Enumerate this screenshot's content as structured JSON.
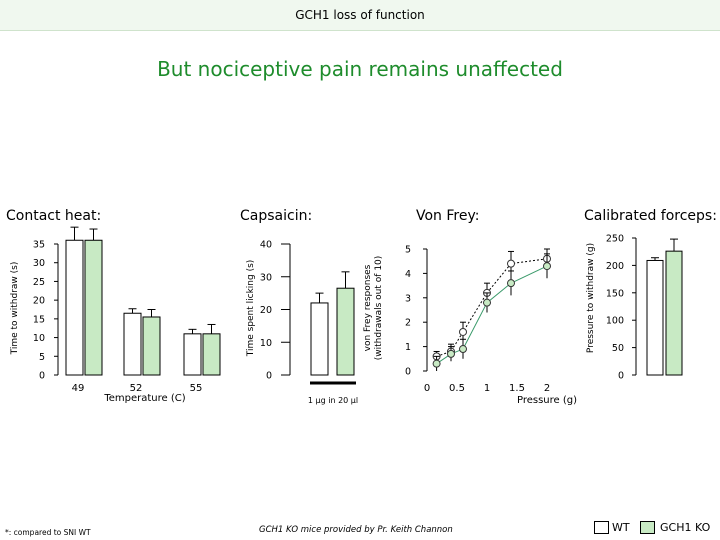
{
  "header_title": "GCH1 loss of function",
  "headline": "But nociceptive pain remains unaffected",
  "section_titles": {
    "contact_heat": "Contact heat:",
    "capsaicin": "Capsaicin:",
    "von_frey": "Von Frey:",
    "forceps": "Calibrated forceps:"
  },
  "footer": {
    "note": "*: compared to SNI WT",
    "credit": "GCH1 KO mice provided by Pr. Keith Channon"
  },
  "legend": {
    "wt": "WT",
    "ko": "GCH1 KO"
  },
  "colors": {
    "wt_fill": "#ffffff",
    "ko_fill": "#c8eac4",
    "ko_line": "#3a9a6a",
    "headline": "#1e8c2c"
  },
  "chart_data": [
    {
      "type": "bar",
      "panel": "contact_heat",
      "categories": [
        "49",
        "52",
        "55"
      ],
      "series": [
        {
          "name": "WT",
          "values": [
            36,
            16.5,
            11
          ],
          "errors": [
            3.5,
            1.2,
            1.2
          ]
        },
        {
          "name": "GCH1 KO",
          "values": [
            36,
            15.5,
            11
          ],
          "errors": [
            3,
            2,
            2.5
          ]
        }
      ],
      "xlabel": "Temperature (C)",
      "ylabel": "Time to withdraw (s)",
      "ylim": [
        0,
        35
      ],
      "yticks": [
        "0",
        "5",
        "10",
        "15",
        "20",
        "25",
        "30",
        "35"
      ]
    },
    {
      "type": "bar",
      "panel": "capsaicin",
      "categories": [
        "1 µg in 20 µl"
      ],
      "series": [
        {
          "name": "WT",
          "values": [
            22
          ],
          "errors": [
            3
          ]
        },
        {
          "name": "GCH1 KO",
          "values": [
            26.5
          ],
          "errors": [
            5
          ]
        }
      ],
      "ylabel": "Time spent licking (s)",
      "ylim": [
        0,
        40
      ],
      "yticks": [
        "0",
        "10",
        "20",
        "30",
        "40"
      ]
    },
    {
      "type": "line",
      "panel": "von_frey",
      "x": [
        0.16,
        0.4,
        0.6,
        1,
        1.4,
        2
      ],
      "series": [
        {
          "name": "WT",
          "values": [
            0.6,
            0.8,
            1.6,
            3.2,
            4.4,
            4.6
          ],
          "errors": [
            0.2,
            0.3,
            0.4,
            0.4,
            0.5,
            0.4
          ]
        },
        {
          "name": "GCH1 KO",
          "values": [
            0.3,
            0.7,
            0.9,
            2.8,
            3.6,
            4.3
          ],
          "errors": [
            0.3,
            0.3,
            0.4,
            0.4,
            0.5,
            0.5
          ]
        }
      ],
      "xticks": [
        "0",
        "0.5",
        "1",
        "1.5",
        "2"
      ],
      "xlabel": "Pressure (g)",
      "ylabel": "von Frey responses (withdrawals out of 10)",
      "ylim": [
        0,
        5
      ],
      "yticks": [
        "0",
        "1",
        "2",
        "3",
        "4",
        "5"
      ]
    },
    {
      "type": "bar",
      "panel": "forceps",
      "categories": [
        ""
      ],
      "series": [
        {
          "name": "WT",
          "values": [
            209
          ],
          "errors": [
            5
          ]
        },
        {
          "name": "GCH1 KO",
          "values": [
            226
          ],
          "errors": [
            22
          ]
        }
      ],
      "ylabel": "Pressure to withdraw (g)",
      "ylim": [
        0,
        250
      ],
      "yticks": [
        "0",
        "50",
        "100",
        "150",
        "200",
        "250"
      ]
    }
  ]
}
